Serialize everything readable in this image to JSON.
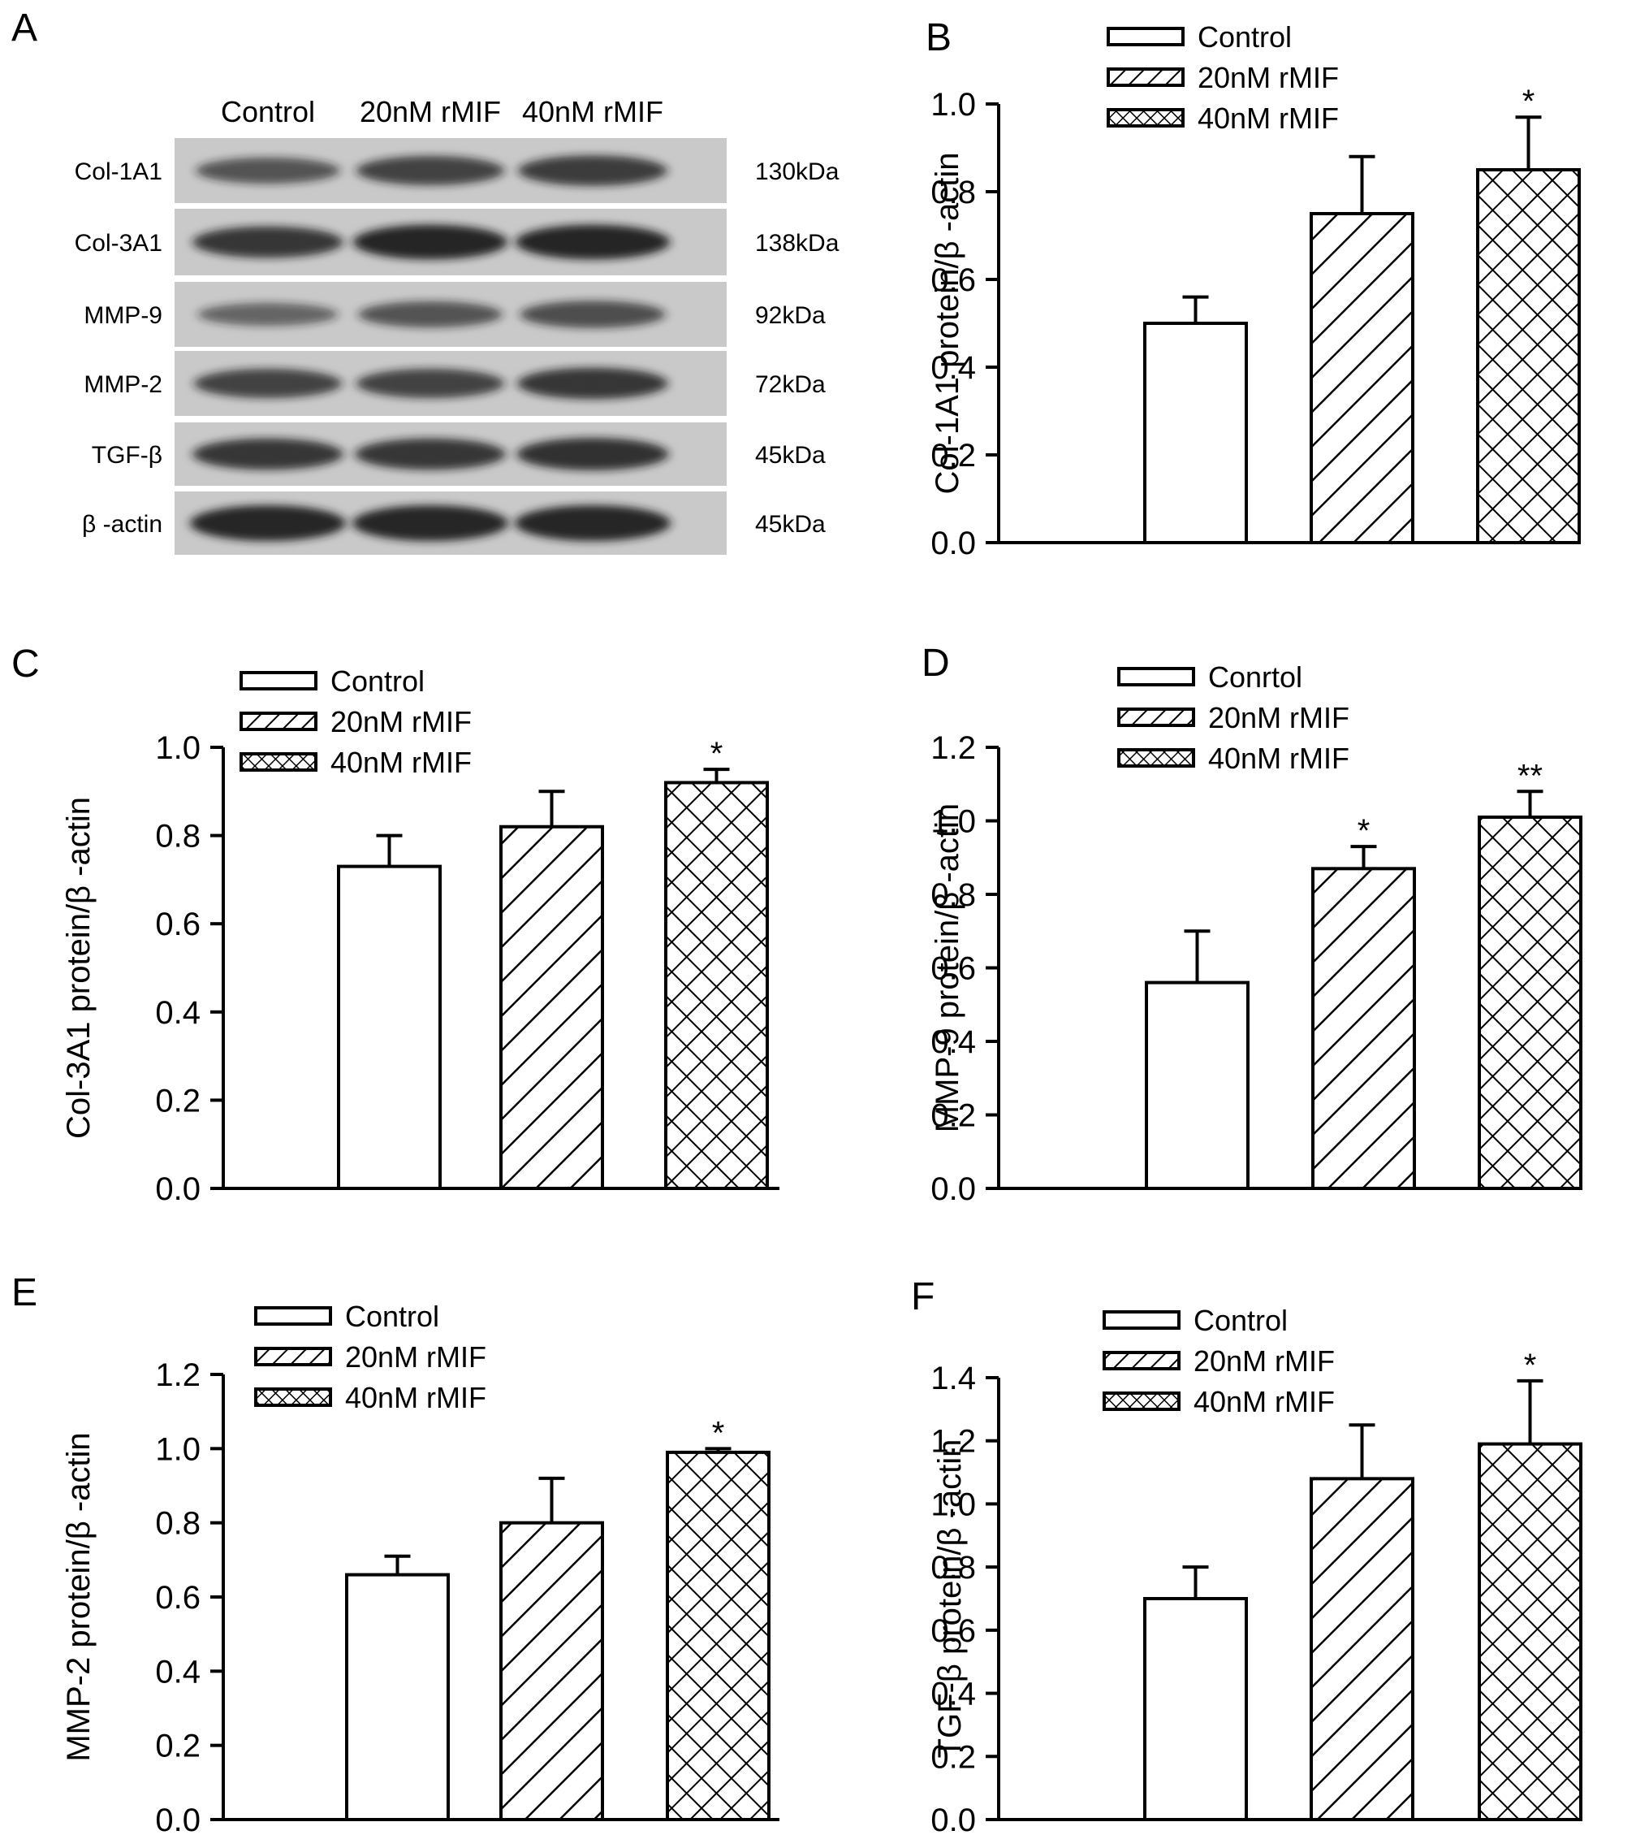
{
  "colors": {
    "ink": "#000000",
    "paper": "#ffffff",
    "blot_bg": "#c9c9c9",
    "band": "#1a1a1a"
  },
  "western_blot": {
    "panel_label": "A",
    "columns": [
      "Control",
      "20nM rMIF",
      "40nM rMIF"
    ],
    "rows": [
      {
        "protein": "Col-1A1",
        "size": "130kDa",
        "intensity": [
          0.55,
          0.7,
          0.75
        ]
      },
      {
        "protein": "Col-3A1",
        "size": "138kDa",
        "intensity": [
          0.8,
          0.95,
          0.95
        ]
      },
      {
        "protein": "MMP-9",
        "size": "92kDa",
        "intensity": [
          0.4,
          0.55,
          0.6
        ]
      },
      {
        "protein": "MMP-2",
        "size": "72kDa",
        "intensity": [
          0.7,
          0.7,
          0.8
        ]
      },
      {
        "protein": "TGF-β",
        "size": "45kDa",
        "intensity": [
          0.8,
          0.8,
          0.85
        ]
      },
      {
        "protein": "β -actin",
        "size": "45kDa",
        "intensity": [
          1.0,
          1.0,
          1.0
        ]
      }
    ]
  },
  "chart_data": [
    {
      "panel": "B",
      "type": "bar",
      "categories": [
        "Control",
        "20nM rMIF",
        "40nM rMIF"
      ],
      "values": [
        0.5,
        0.75,
        0.85
      ],
      "errors": [
        0.06,
        0.13,
        0.12
      ],
      "significance": [
        "",
        "",
        "*"
      ],
      "ylabel": "Col-1A1 protein/β -actin",
      "ylim": [
        0,
        1.0
      ],
      "yticks": [
        "0.0",
        "0.2",
        "0.4",
        "0.6",
        "0.8",
        "1.0"
      ],
      "legend": [
        "Control",
        "20nM rMIF",
        "40nM rMIF"
      ],
      "legend_position": "top-left",
      "patterns": [
        "none",
        "diagonal",
        "crosshatch"
      ]
    },
    {
      "panel": "C",
      "type": "bar",
      "categories": [
        "Control",
        "20nM rMIF",
        "40nM rMIF"
      ],
      "values": [
        0.73,
        0.82,
        0.92
      ],
      "errors": [
        0.07,
        0.08,
        0.03
      ],
      "significance": [
        "",
        "",
        "*"
      ],
      "ylabel": "Col-3A1 protein/β -actin",
      "ylim": [
        0,
        1.0
      ],
      "yticks": [
        "0.0",
        "0.2",
        "0.4",
        "0.6",
        "0.8",
        "1.0"
      ],
      "legend": [
        "Control",
        "20nM rMIF",
        "40nM rMIF"
      ],
      "legend_position": "top-left",
      "patterns": [
        "none",
        "diagonal",
        "crosshatch"
      ]
    },
    {
      "panel": "D",
      "type": "bar",
      "categories": [
        "Conrtol",
        "20nM rMIF",
        "40nM rMIF"
      ],
      "values": [
        0.56,
        0.87,
        1.01
      ],
      "errors": [
        0.14,
        0.06,
        0.07
      ],
      "significance": [
        "",
        "*",
        "**"
      ],
      "ylabel": "MMP-9 protein/β -actin",
      "ylim": [
        0,
        1.2
      ],
      "yticks": [
        "0.0",
        "0.2",
        "0.4",
        "0.6",
        "0.8",
        "1.0",
        "1.2"
      ],
      "legend": [
        "Conrtol",
        "20nM rMIF",
        "40nM rMIF"
      ],
      "legend_position": "top-left",
      "patterns": [
        "none",
        "diagonal",
        "crosshatch"
      ]
    },
    {
      "panel": "E",
      "type": "bar",
      "categories": [
        "Control",
        "20nM rMIF",
        "40nM rMIF"
      ],
      "values": [
        0.66,
        0.8,
        0.99
      ],
      "errors": [
        0.05,
        0.12,
        0.01
      ],
      "significance": [
        "",
        "",
        "*"
      ],
      "ylabel": "MMP-2 protein/β -actin",
      "ylim": [
        0,
        1.2
      ],
      "yticks": [
        "0.0",
        "0.2",
        "0.4",
        "0.6",
        "0.8",
        "1.0",
        "1.2"
      ],
      "legend": [
        "Control",
        "20nM rMIF",
        "40nM rMIF"
      ],
      "legend_position": "top-left",
      "patterns": [
        "none",
        "diagonal",
        "crosshatch"
      ]
    },
    {
      "panel": "F",
      "type": "bar",
      "categories": [
        "Control",
        "20nM rMIF",
        "40nM rMIF"
      ],
      "values": [
        0.7,
        1.08,
        1.19
      ],
      "errors": [
        0.1,
        0.17,
        0.2
      ],
      "significance": [
        "",
        "",
        "*"
      ],
      "ylabel": "TGF-β  protein/β -actin",
      "ylim": [
        0,
        1.4
      ],
      "yticks": [
        "0.0",
        "0.2",
        "0.4",
        "0.6",
        "0.8",
        "1.0",
        "1.2",
        "1.4"
      ],
      "legend": [
        "Control",
        "20nM rMIF",
        "40nM rMIF"
      ],
      "legend_position": "top-left",
      "patterns": [
        "none",
        "diagonal",
        "crosshatch"
      ]
    }
  ]
}
